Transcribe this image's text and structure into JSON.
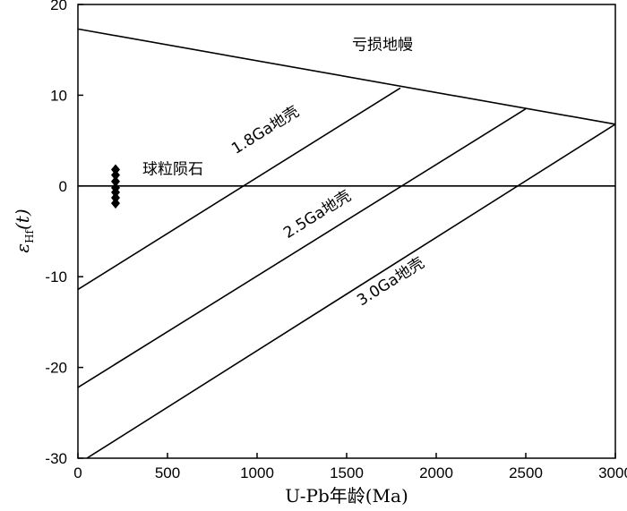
{
  "chart_data": {
    "type": "line",
    "xlabel": "U-Pb年龄(Ma)",
    "ylabel": {
      "main": "ε",
      "sub": "Hf",
      "suffix": "(t)"
    },
    "xlim": [
      0,
      3000
    ],
    "ylim": [
      -30,
      20
    ],
    "xticks": [
      0,
      500,
      1000,
      1500,
      2000,
      2500,
      3000
    ],
    "yticks": [
      -30,
      -20,
      -10,
      0,
      10,
      20
    ],
    "grid": false,
    "legend": "none",
    "series": [
      {
        "name": "亏损地幔",
        "kind": "line",
        "x": [
          0,
          3000
        ],
        "y": [
          17.3,
          6.8
        ]
      },
      {
        "name": "1.8Ga地壳",
        "kind": "line",
        "x": [
          0,
          1800
        ],
        "y": [
          -11.4,
          10.8
        ]
      },
      {
        "name": "2.5Ga地壳",
        "kind": "line",
        "x": [
          0,
          2500
        ],
        "y": [
          -22.2,
          8.5
        ]
      },
      {
        "name": "3.0Ga地壳",
        "kind": "line",
        "x": [
          50,
          3000
        ],
        "y": [
          -30,
          6.8
        ]
      },
      {
        "name": "球粒陨石",
        "kind": "line",
        "x": [
          0,
          3000
        ],
        "y": [
          0,
          0
        ]
      },
      {
        "name": "samples",
        "kind": "scatter",
        "x": [
          210,
          210,
          210,
          210,
          210,
          210,
          210
        ],
        "y": [
          1.8,
          1.2,
          0.5,
          -0.2,
          -0.7,
          -1.3,
          -1.9
        ]
      }
    ],
    "annotations": [
      {
        "text": "亏损地幔",
        "x": 1700,
        "y": 15.0,
        "rotate_to_series": null
      },
      {
        "text": "球粒陨石",
        "x": 530,
        "y": 1.3,
        "rotate_to_series": null
      },
      {
        "text": "1.8Ga地壳",
        "x": 1060,
        "y": 5.7,
        "rotate_to_series": "1.8Ga地壳"
      },
      {
        "text": "2.5Ga地壳",
        "x": 1350,
        "y": -3.6,
        "rotate_to_series": "2.5Ga地壳"
      },
      {
        "text": "3.0Ga地壳",
        "x": 1760,
        "y": -11.0,
        "rotate_to_series": "3.0Ga地壳"
      }
    ]
  },
  "colors": {
    "line": "#000000",
    "background": "#ffffff"
  }
}
